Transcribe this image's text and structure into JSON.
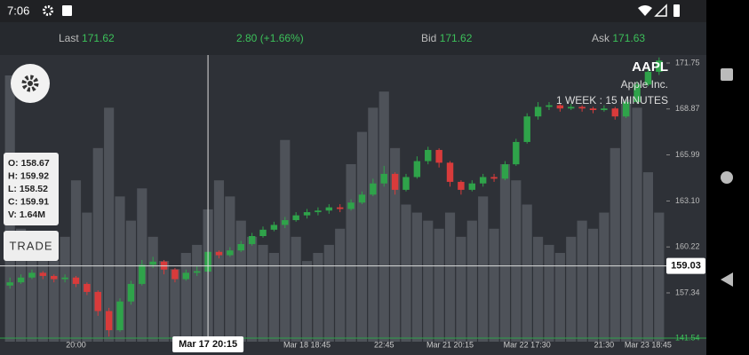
{
  "status_bar": {
    "time": "7:06"
  },
  "quote_bar": {
    "last_label": "Last",
    "last": "171.62",
    "change": "2.80 (+1.66%)",
    "bid_label": "Bid",
    "bid": "171.62",
    "ask_label": "Ask",
    "ask": "171.63"
  },
  "info_box": {
    "lines": [
      "O: 158.67",
      "H: 159.92",
      "L: 158.52",
      "C: 159.91",
      "V: 1.64M"
    ]
  },
  "trade_button": "TRADE",
  "chart_data": {
    "type": "candlestick",
    "symbol": "AAPL",
    "company": "Apple Inc.",
    "period": "1 WEEK : 15 MINUTES",
    "categories": [
      null,
      null,
      null,
      null,
      null,
      null,
      "20:00",
      null,
      null,
      null,
      null,
      null,
      null,
      null,
      null,
      null,
      null,
      null,
      null,
      null,
      null,
      null,
      null,
      null,
      null,
      null,
      null,
      "Mar 18 18:45",
      null,
      null,
      null,
      null,
      null,
      null,
      "22:45",
      null,
      null,
      null,
      null,
      null,
      "Mar 21 20:15",
      null,
      null,
      null,
      null,
      null,
      null,
      "Mar 22 17:30",
      null,
      null,
      null,
      null,
      null,
      null,
      "21:30",
      null,
      null,
      null,
      "Mar 23 18:45",
      null
    ],
    "open": [
      157.8,
      158.0,
      158.3,
      158.6,
      158.4,
      158.2,
      158.3,
      157.9,
      157.4,
      156.2,
      155.0,
      156.8,
      157.9,
      159.1,
      159.3,
      158.8,
      158.2,
      158.6,
      158.67,
      159.91,
      159.7,
      160.0,
      160.4,
      160.9,
      161.3,
      161.6,
      161.9,
      162.2,
      162.4,
      162.5,
      162.7,
      162.6,
      163.0,
      163.5,
      164.2,
      164.8,
      163.8,
      164.6,
      165.6,
      166.3,
      165.5,
      164.3,
      163.8,
      164.2,
      164.6,
      164.5,
      165.4,
      166.8,
      168.4,
      169.0,
      169.1,
      168.9,
      169.0,
      168.9,
      168.8,
      168.9,
      168.4,
      169.3,
      170.4,
      171.2
    ],
    "high": [
      158.3,
      158.5,
      158.8,
      158.7,
      158.5,
      158.5,
      158.4,
      158.0,
      157.5,
      156.4,
      157.0,
      158.1,
      159.4,
      159.6,
      159.4,
      158.9,
      158.8,
      159.0,
      159.92,
      160.0,
      160.2,
      160.6,
      161.1,
      161.5,
      161.8,
      162.1,
      162.4,
      162.6,
      162.7,
      162.9,
      162.9,
      163.2,
      163.7,
      164.5,
      165.3,
      164.9,
      164.8,
      165.9,
      166.5,
      166.4,
      165.6,
      164.4,
      164.4,
      164.8,
      164.8,
      165.6,
      167.0,
      168.6,
      169.3,
      169.3,
      169.2,
      169.2,
      169.1,
      169.0,
      169.1,
      169.0,
      169.5,
      170.6,
      171.5,
      172.1
    ],
    "low": [
      157.6,
      157.9,
      158.2,
      158.2,
      158.0,
      158.0,
      157.7,
      157.2,
      155.9,
      154.6,
      154.9,
      156.6,
      157.8,
      158.9,
      158.5,
      158.0,
      158.1,
      158.4,
      158.52,
      159.5,
      159.6,
      159.9,
      160.3,
      160.8,
      161.2,
      161.4,
      161.8,
      162.0,
      162.2,
      162.3,
      162.4,
      162.5,
      162.9,
      163.4,
      164.0,
      163.5,
      163.7,
      164.5,
      165.4,
      165.2,
      164.0,
      163.5,
      163.7,
      164.0,
      164.3,
      164.4,
      165.3,
      166.7,
      168.2,
      168.8,
      168.7,
      168.8,
      168.7,
      168.6,
      168.7,
      168.2,
      168.3,
      169.2,
      170.3,
      171.0
    ],
    "close": [
      158.0,
      158.3,
      158.6,
      158.4,
      158.2,
      158.3,
      157.9,
      157.4,
      156.2,
      155.0,
      156.8,
      157.9,
      159.1,
      159.3,
      158.8,
      158.2,
      158.6,
      158.7,
      159.91,
      159.7,
      160.0,
      160.4,
      160.9,
      161.3,
      161.6,
      161.9,
      162.2,
      162.4,
      162.5,
      162.7,
      162.6,
      163.0,
      163.5,
      164.2,
      164.8,
      163.8,
      164.6,
      165.6,
      166.3,
      165.5,
      164.3,
      163.8,
      164.2,
      164.6,
      164.5,
      165.4,
      166.8,
      168.4,
      169.0,
      169.1,
      168.9,
      169.0,
      168.9,
      168.8,
      168.9,
      168.4,
      169.3,
      170.4,
      171.2,
      171.9
    ],
    "volume": [
      3.3,
      1.4,
      1.2,
      1.1,
      1.0,
      1.3,
      2.0,
      1.6,
      2.4,
      2.9,
      1.8,
      1.5,
      1.9,
      1.3,
      1.0,
      0.9,
      1.1,
      1.2,
      1.64,
      2.0,
      1.8,
      1.5,
      1.3,
      1.2,
      1.1,
      2.5,
      1.3,
      1.0,
      1.1,
      1.2,
      1.4,
      2.2,
      2.6,
      2.9,
      3.1,
      2.4,
      1.7,
      1.6,
      1.5,
      1.4,
      1.6,
      1.3,
      1.5,
      1.8,
      1.4,
      2.2,
      2.0,
      1.7,
      1.3,
      1.2,
      1.1,
      1.3,
      1.5,
      1.4,
      1.6,
      2.4,
      3.0,
      2.9,
      2.1,
      1.6
    ],
    "ylim": [
      154.28,
      172.25
    ],
    "yticks": [
      157.34,
      160.22,
      {
        "value": 163.1,
        "label": "163.10"
      },
      165.99,
      168.87,
      171.75
    ],
    "up_color": "#2fa34a",
    "down_color": "#d83b3b",
    "volume_color": "#5a5e65",
    "crosshair": {
      "x_label": "Mar 17 20:15",
      "price": 159.03
    },
    "baseline_label": "141.54"
  }
}
